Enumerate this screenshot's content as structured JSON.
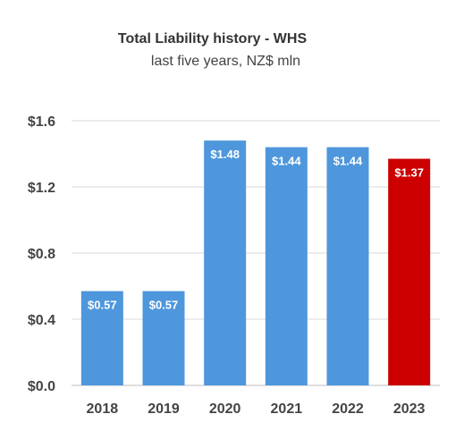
{
  "chart_data": {
    "type": "bar",
    "title": "Total Liability history - WHS",
    "subtitle": "last five years, NZ$ mln",
    "categories": [
      "2018",
      "2019",
      "2020",
      "2021",
      "2022",
      "2023"
    ],
    "values": [
      0.57,
      0.57,
      1.48,
      1.44,
      1.44,
      1.37
    ],
    "data_labels": [
      "$0.57",
      "$0.57",
      "$1.48",
      "$1.44",
      "$1.44",
      "$1.37"
    ],
    "y_ticks": [
      0.0,
      0.4,
      0.8,
      1.2,
      1.6
    ],
    "y_tick_labels": [
      "$0.0",
      "$0.4",
      "$0.8",
      "$1.2",
      "$1.6"
    ],
    "ylim": [
      0,
      1.6
    ],
    "grid": true,
    "legend": "none",
    "colors": {
      "default_bar": "#4e97dc",
      "highlight_bar": "#cc0000",
      "grid": "#d9d9d9",
      "axis": "#bfbfbf"
    },
    "highlight_index": 5
  }
}
